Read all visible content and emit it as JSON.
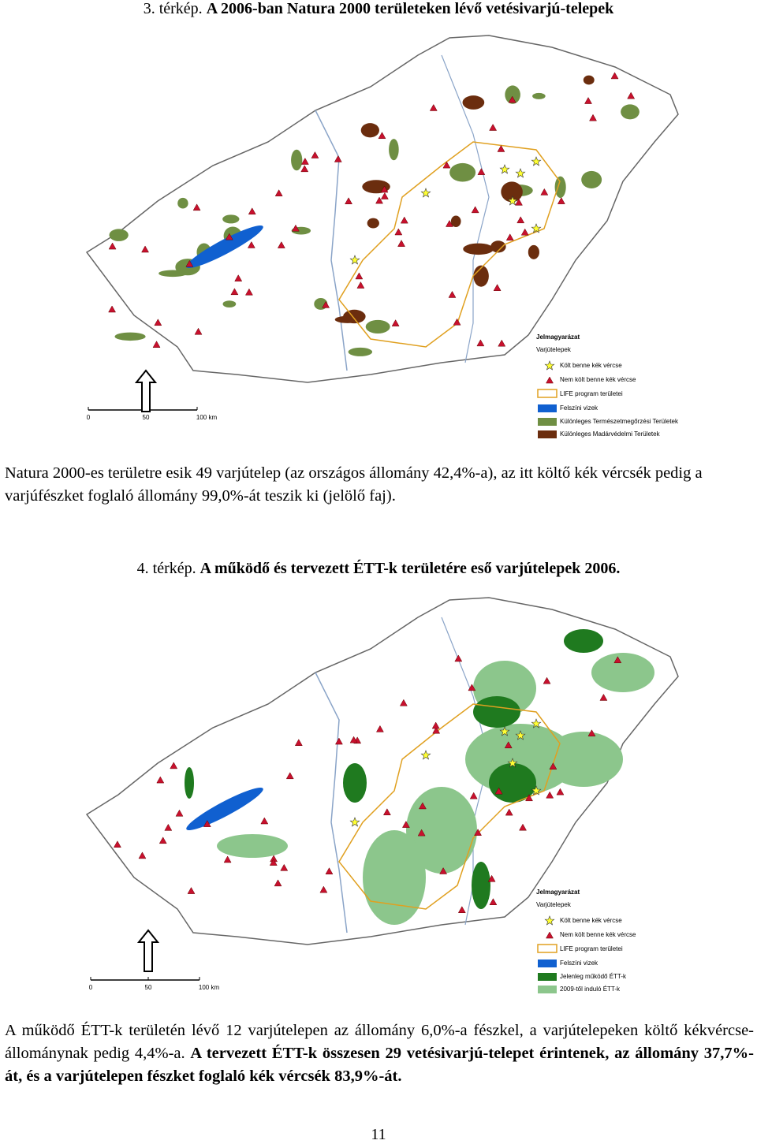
{
  "maps": [
    {
      "caption_prefix": "3. térkép.",
      "caption_title": "A 2006-ban Natura 2000 területeken lévő vetésivarjú-telepek",
      "legend": {
        "title": "Jelmagyarázat",
        "subtitle": "Varjútelepek",
        "items": [
          "Költ benne kék vércse",
          "Nem költ benne kék vércse",
          "LIFE program területei",
          "Felszíni vizek",
          "Különleges Természetmegőrzési Területek",
          "Különleges Madárvédelmi Területek"
        ]
      },
      "scale": [
        "0",
        "50",
        "100 km"
      ],
      "text": "Natura 2000-es területre esik 49 varjútelep (az országos állomány 42,4%-a), az itt költő kék vércsék pedig a varjúfészket foglaló állomány 99,0%-át teszik ki (jelölő faj)."
    },
    {
      "caption_prefix": "4. térkép.",
      "caption_title": "A működő és tervezett ÉTT-k területére eső varjútelepek 2006.",
      "legend": {
        "title": "Jelmagyarázat",
        "subtitle": "Varjútelepek",
        "items": [
          "Költ benne kék vércse",
          "Nem költ benne kék vércse",
          "LIFE program területei",
          "Felszíni vizek",
          "Jelenleg működő ÉTT-k",
          "2009-től induló ÉTT-k"
        ]
      },
      "scale": [
        "0",
        "50",
        "100 km"
      ],
      "text": "A működő ÉTT-k területén lévő 12 varjútelepen az állomány 6,0%-a fészkel, a varjútelepeken költő kékvércse-állománynak pedig 4,4%-a.",
      "text_bold": "A tervezett ÉTT-k összesen 29 vetésivarjú-telepet érintenek, az állomány 37,7%-át, és a varjútelepen fészket foglaló kék vércsék 83,9%-át."
    }
  ],
  "page_number": "11"
}
